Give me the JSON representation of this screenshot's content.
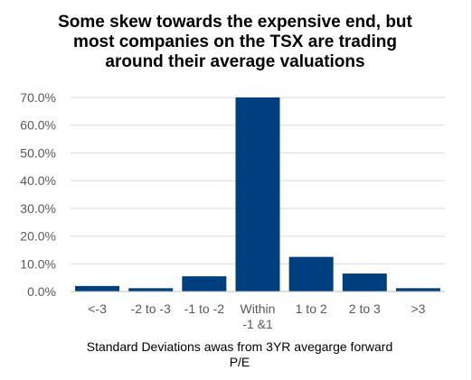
{
  "chart_data": {
    "type": "bar",
    "title_lines": [
      "Some skew towards the expensive end, but",
      "most companies on the TSX are trading",
      "around their average valuations"
    ],
    "xlabel_lines": [
      "Standard Deviations awas from 3YR avegarge forward",
      "P/E"
    ],
    "ylabel": "",
    "category_lines": [
      [
        "<-3"
      ],
      [
        "-2 to -3"
      ],
      [
        "-1 to -2"
      ],
      [
        "Within",
        "-1 &1"
      ],
      [
        "1 to 2"
      ],
      [
        "2 to 3"
      ],
      [
        ">3"
      ]
    ],
    "values": [
      2.0,
      1.2,
      5.5,
      70.0,
      12.5,
      6.5,
      1.2
    ],
    "ylim": [
      0,
      70
    ],
    "yticks": [
      0,
      10,
      20,
      30,
      40,
      50,
      60,
      70
    ],
    "ytick_labels": [
      "0.0%",
      "10.0%",
      "20.0%",
      "30.0%",
      "40.0%",
      "50.0%",
      "60.0%",
      "70.0%"
    ],
    "grid": true,
    "legend": "none",
    "colors": {
      "bar": "#003f7f",
      "grid": "#d9d9d9",
      "axis": "#bfbfbf"
    }
  }
}
